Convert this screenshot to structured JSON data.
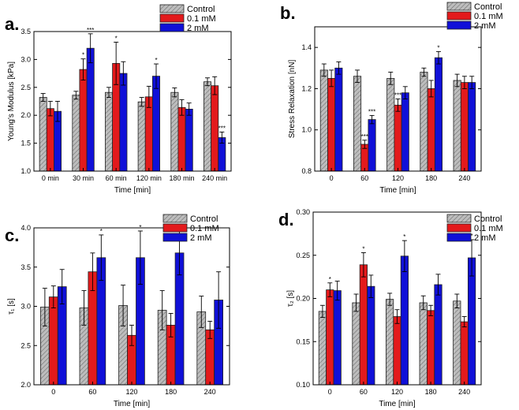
{
  "chart_data": [
    {
      "id": "a",
      "panel_label": "a.",
      "type": "bar",
      "categories": [
        "0 min",
        "30 min",
        "60 min",
        "120 min",
        "180 min",
        "240 min"
      ],
      "xlabel": "Time [min]",
      "ylabel": "Young's Modulus [kPa]",
      "ylim": [
        1.0,
        3.5
      ],
      "yticks": [
        "1.0",
        "1.5",
        "2.0",
        "2.5",
        "3.0",
        "3.5"
      ],
      "series": [
        {
          "name": "Control",
          "values": [
            2.32,
            2.36,
            2.41,
            2.24,
            2.41,
            2.6
          ],
          "errors": [
            0.07,
            0.07,
            0.09,
            0.08,
            0.08,
            0.07
          ],
          "sig": [
            "",
            "",
            "",
            "",
            "",
            ""
          ]
        },
        {
          "name": "0.1 mM",
          "values": [
            2.12,
            2.82,
            2.93,
            2.33,
            2.14,
            2.53
          ],
          "errors": [
            0.13,
            0.19,
            0.38,
            0.19,
            0.14,
            0.16
          ],
          "sig": [
            "",
            "*",
            "*",
            "",
            "",
            ""
          ]
        },
        {
          "name": "2 mM",
          "values": [
            2.07,
            3.2,
            2.75,
            2.7,
            2.11,
            1.6
          ],
          "errors": [
            0.18,
            0.26,
            0.21,
            0.22,
            0.11,
            0.1
          ],
          "sig": [
            "",
            "***",
            "",
            "*",
            "",
            "***"
          ]
        }
      ]
    },
    {
      "id": "b",
      "panel_label": "b.",
      "type": "bar",
      "categories": [
        "0",
        "60",
        "120",
        "180",
        "240"
      ],
      "xlabel": "Time [min]",
      "ylabel": "Stress Relaxation [nN]",
      "ylim": [
        0.8,
        1.5
      ],
      "yticks": [
        "0.8",
        "1.0",
        "1.2",
        "1.4"
      ],
      "series": [
        {
          "name": "Control",
          "values": [
            1.29,
            1.26,
            1.25,
            1.28,
            1.24
          ],
          "errors": [
            0.03,
            0.03,
            0.03,
            0.02,
            0.03
          ],
          "sig": [
            "",
            "",
            "",
            "",
            ""
          ]
        },
        {
          "name": "0.1 mM",
          "values": [
            1.25,
            0.93,
            1.12,
            1.2,
            1.23
          ],
          "errors": [
            0.04,
            0.02,
            0.03,
            0.04,
            0.03
          ],
          "sig": [
            "",
            "***",
            "***",
            "",
            ""
          ]
        },
        {
          "name": "2 mM",
          "values": [
            1.3,
            1.05,
            1.18,
            1.35,
            1.23
          ],
          "errors": [
            0.03,
            0.02,
            0.03,
            0.03,
            0.03
          ],
          "sig": [
            "",
            "***",
            "",
            "*",
            ""
          ]
        }
      ]
    },
    {
      "id": "c",
      "panel_label": "c.",
      "type": "bar",
      "categories": [
        "0",
        "60",
        "120",
        "180",
        "240"
      ],
      "xlabel": "Time [min]",
      "ylabel": "τ₁ [s]",
      "ylim": [
        2.0,
        4.0
      ],
      "yticks": [
        "2.0",
        "2.5",
        "3.0",
        "3.5",
        "4.0"
      ],
      "series": [
        {
          "name": "Control",
          "values": [
            2.99,
            2.98,
            3.01,
            2.95,
            2.93
          ],
          "errors": [
            0.24,
            0.22,
            0.26,
            0.25,
            0.2
          ],
          "sig": [
            "",
            "",
            "",
            "",
            ""
          ]
        },
        {
          "name": "0.1 mM",
          "values": [
            3.12,
            3.44,
            2.63,
            2.76,
            2.7
          ],
          "errors": [
            0.14,
            0.24,
            0.13,
            0.15,
            0.11
          ],
          "sig": [
            "",
            "",
            "",
            "",
            ""
          ]
        },
        {
          "name": "2 mM",
          "values": [
            3.25,
            3.62,
            3.62,
            3.68,
            3.08
          ],
          "errors": [
            0.22,
            0.29,
            0.34,
            0.28,
            0.36
          ],
          "sig": [
            "",
            "*",
            "*",
            "*",
            ""
          ]
        }
      ]
    },
    {
      "id": "d",
      "panel_label": "d.",
      "type": "bar",
      "categories": [
        "0",
        "60",
        "120",
        "180",
        "240"
      ],
      "xlabel": "Time [min]",
      "ylabel": "τ₂ [s]",
      "ylim": [
        0.1,
        0.3
      ],
      "yticks": [
        "0.10",
        "0.15",
        "0.20",
        "0.25",
        "0.30"
      ],
      "series": [
        {
          "name": "Control",
          "values": [
            0.185,
            0.195,
            0.199,
            0.195,
            0.197
          ],
          "errors": [
            0.007,
            0.01,
            0.007,
            0.008,
            0.008
          ],
          "sig": [
            "",
            "",
            "",
            "",
            ""
          ]
        },
        {
          "name": "0.1 mM",
          "values": [
            0.21,
            0.239,
            0.179,
            0.186,
            0.173
          ],
          "errors": [
            0.008,
            0.014,
            0.008,
            0.006,
            0.006
          ],
          "sig": [
            "*",
            "*",
            "",
            "",
            ""
          ]
        },
        {
          "name": "2 mM",
          "values": [
            0.209,
            0.214,
            0.249,
            0.216,
            0.247
          ],
          "errors": [
            0.011,
            0.013,
            0.018,
            0.012,
            0.021
          ],
          "sig": [
            "",
            "",
            "*",
            "",
            "*"
          ]
        }
      ]
    }
  ],
  "legend": [
    "Control",
    "0.1 mM",
    "2 mM"
  ],
  "colors": {
    "control": "#bdbdbd",
    "mm01": "#e31a1c",
    "mm2": "#1010d8",
    "axis": "#000000"
  }
}
